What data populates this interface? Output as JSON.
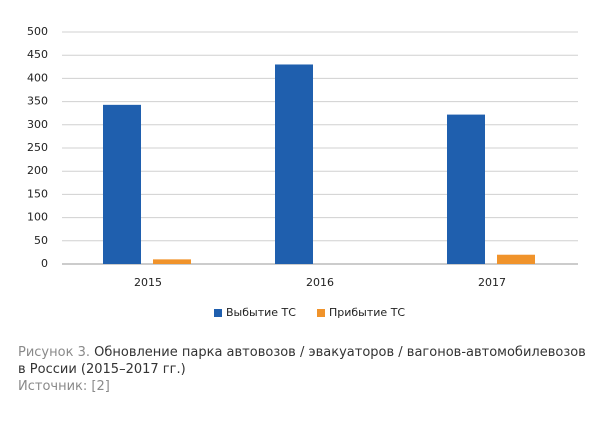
{
  "chart_data": {
    "type": "bar",
    "figure_label": "Рисунок 3.",
    "title": "Обновление парка автовозов / эвакуаторов / вагонов-автомобилевозов в России (2015–2017 гг.)",
    "source": "Источник: [2]",
    "categories": [
      "2015",
      "2016",
      "2017"
    ],
    "series": [
      {
        "name": "Выбытие ТС",
        "color": "#1f5fae",
        "values": [
          343,
          430,
          322
        ]
      },
      {
        "name": "Прибытие ТС",
        "color": "#f0932b",
        "values": [
          10,
          0,
          20
        ]
      }
    ],
    "ylim": [
      0,
      500
    ],
    "yticks": [
      0,
      50,
      100,
      150,
      200,
      250,
      300,
      350,
      400,
      450,
      500
    ],
    "grid": true,
    "legend": "bottom"
  }
}
